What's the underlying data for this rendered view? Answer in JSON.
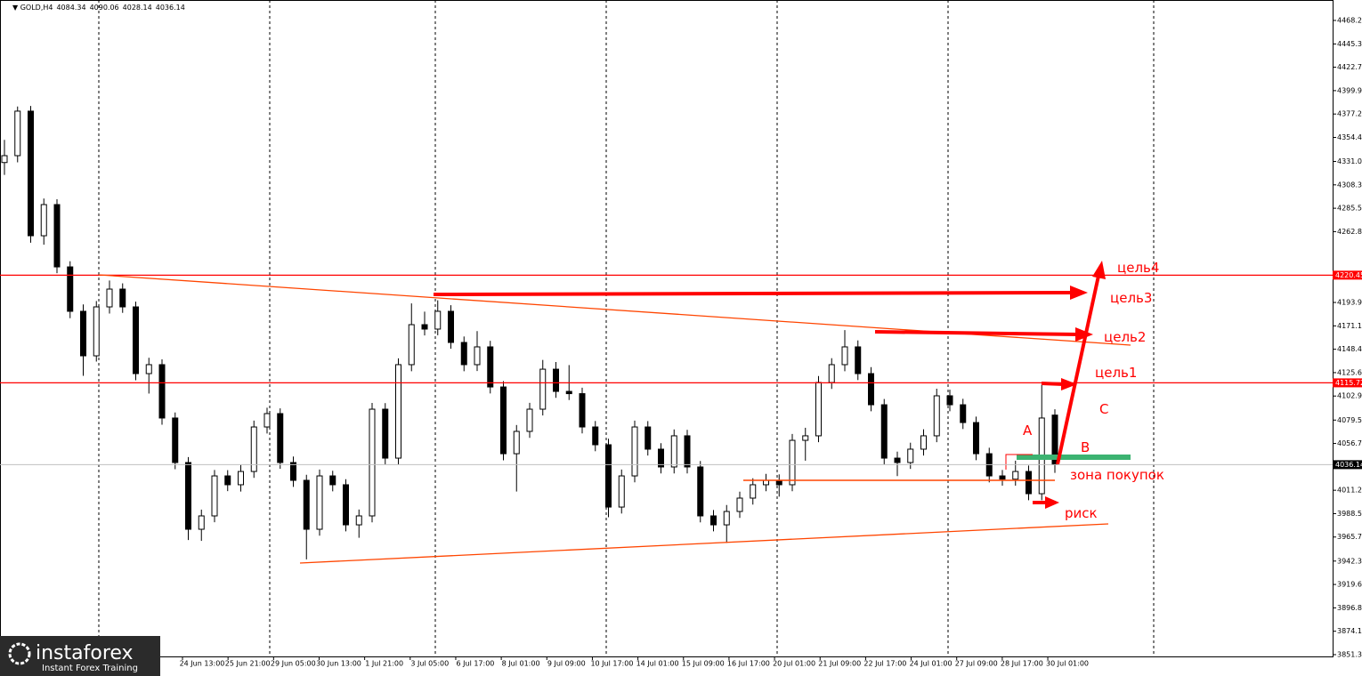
{
  "chart_data": {
    "type": "candlestick",
    "symbol": "GOLD,H4",
    "ylim": [
      3849.6,
      4488.1
    ],
    "yticks": [
      4468.22,
      4445.35,
      4422.75,
      4399.95,
      4377.2,
      4354.45,
      4331.05,
      4308.3,
      4285.55,
      4262.8,
      4193.9,
      4171.15,
      4148.4,
      4125.65,
      4102.9,
      4079.5,
      4056.75,
      4011.25,
      3988.5,
      3965.75,
      3942.35,
      3919.6,
      3896.85,
      3874.1,
      3851.35
    ],
    "x_labels": [
      "24 Jun 13:00",
      "25 Jun 21:00",
      "29 Jun 05:00",
      "30 Jun 13:00",
      "1 Jul 21:00",
      "3 Jul 05:00",
      "6 Jul 17:00",
      "8 Jul 01:00",
      "9 Jul 09:00",
      "10 Jul 17:00",
      "14 Jul 01:00",
      "15 Jul 09:00",
      "16 Jul 17:00",
      "20 Jul 01:00",
      "21 Jul 09:00",
      "22 Jul 17:00",
      "24 Jul 01:00",
      "27 Jul 09:00",
      "28 Jul 17:00",
      "30 Jul 01:00"
    ],
    "levels": [
      {
        "value": 4220.45,
        "color": "#ff0000"
      },
      {
        "value": 4115.72,
        "color": "#ff0000"
      }
    ],
    "ohlc": [
      [
        4330.0,
        4352.0,
        4318.0,
        4336.7
      ],
      [
        4336.7,
        4384.5,
        4330.2,
        4380.0
      ],
      [
        4380.0,
        4385.0,
        4252.0,
        4258.8
      ],
      [
        4258.8,
        4295.0,
        4250.1,
        4289.1
      ],
      [
        4289.1,
        4294.3,
        4222.4,
        4228.5
      ],
      [
        4228.5,
        4234.0,
        4178.6,
        4185.3
      ],
      [
        4185.3,
        4192.0,
        4122.6,
        4142.0
      ],
      [
        4142.0,
        4195.3,
        4136.4,
        4189.6
      ],
      [
        4189.6,
        4215.2,
        4183.1,
        4206.9
      ],
      [
        4206.9,
        4212.5,
        4183.8,
        4189.6
      ],
      [
        4189.6,
        4194.7,
        4118.2,
        4124.7
      ],
      [
        4124.7,
        4140.1,
        4105.3,
        4133.4
      ],
      [
        4133.4,
        4138.6,
        4075.0,
        4081.5
      ],
      [
        4081.5,
        4086.9,
        4031.7,
        4038.2
      ],
      [
        4038.2,
        4043.5,
        3962.8,
        3973.3
      ],
      [
        3973.3,
        3992.4,
        3962.0,
        3986.3
      ],
      [
        3986.3,
        4031.0,
        3980.1,
        4025.2
      ],
      [
        4025.2,
        4030.8,
        4010.4,
        4016.6
      ],
      [
        4016.6,
        4035.7,
        4010.0,
        4029.5
      ],
      [
        4029.5,
        4079.0,
        4023.3,
        4072.8
      ],
      [
        4072.8,
        4091.5,
        4066.4,
        4085.8
      ],
      [
        4085.8,
        4090.9,
        4032.1,
        4038.2
      ],
      [
        4038.2,
        4044.0,
        4014.5,
        4020.9
      ],
      [
        4020.9,
        4026.3,
        3944.0,
        3973.3
      ],
      [
        3973.3,
        4031.4,
        3967.0,
        4025.2
      ],
      [
        4025.2,
        4030.2,
        4010.2,
        4016.6
      ],
      [
        4016.6,
        4022.0,
        3971.3,
        3977.6
      ],
      [
        3977.6,
        3992.5,
        3965.0,
        3986.3
      ],
      [
        3986.3,
        4096.2,
        3980.0,
        4090.1
      ],
      [
        4090.1,
        4096.0,
        4036.2,
        4042.5
      ],
      [
        4042.5,
        4139.5,
        4036.4,
        4133.4
      ],
      [
        4133.4,
        4193.0,
        4127.0,
        4172.3
      ],
      [
        4172.3,
        4185.0,
        4161.8,
        4168.0
      ],
      [
        4168.0,
        4196.0,
        4162.0,
        4185.3
      ],
      [
        4185.3,
        4191.2,
        4149.0,
        4155.0
      ],
      [
        4155.0,
        4160.8,
        4127.0,
        4133.4
      ],
      [
        4133.4,
        4166.0,
        4127.2,
        4150.7
      ],
      [
        4150.7,
        4156.6,
        4105.4,
        4111.7
      ],
      [
        4111.7,
        4117.4,
        4040.4,
        4046.8
      ],
      [
        4046.8,
        4074.7,
        4010.0,
        4068.5
      ],
      [
        4068.5,
        4096.3,
        4062.2,
        4090.1
      ],
      [
        4090.1,
        4138.0,
        4084.0,
        4129.0
      ],
      [
        4129.0,
        4136.0,
        4101.1,
        4107.4
      ],
      [
        4107.4,
        4133.0,
        4099.0,
        4105.2
      ],
      [
        4105.2,
        4111.0,
        4066.5,
        4072.8
      ],
      [
        4072.8,
        4078.6,
        4049.2,
        4055.5
      ],
      [
        4055.5,
        4061.3,
        3985.0,
        3994.9
      ],
      [
        3994.9,
        4031.4,
        3988.6,
        4025.2
      ],
      [
        4025.2,
        4079.0,
        4019.0,
        4072.8
      ],
      [
        4072.8,
        4078.5,
        4045.0,
        4051.2
      ],
      [
        4051.2,
        4057.0,
        4027.6,
        4033.9
      ],
      [
        4033.9,
        4070.4,
        4027.6,
        4064.2
      ],
      [
        4064.2,
        4070.0,
        4027.6,
        4033.9
      ],
      [
        4033.9,
        4039.7,
        3980.0,
        3986.3
      ],
      [
        3986.3,
        3992.0,
        3971.3,
        3977.6
      ],
      [
        3977.6,
        3996.9,
        3960.0,
        3990.6
      ],
      [
        3990.6,
        4009.9,
        3984.3,
        4003.6
      ],
      [
        4003.6,
        4022.9,
        3997.3,
        4016.6
      ],
      [
        4016.6,
        4027.2,
        4010.3,
        4020.9
      ],
      [
        4020.9,
        4026.7,
        4005.0,
        4016.6
      ],
      [
        4016.6,
        4066.0,
        4010.3,
        4059.8
      ],
      [
        4059.8,
        4072.0,
        4040.0,
        4064.2
      ],
      [
        4064.2,
        4122.4,
        4058.0,
        4116.1
      ],
      [
        4116.1,
        4139.7,
        4109.8,
        4133.4
      ],
      [
        4133.4,
        4167.0,
        4127.0,
        4150.7
      ],
      [
        4150.7,
        4157.0,
        4118.4,
        4124.7
      ],
      [
        4124.7,
        4131.0,
        4088.1,
        4094.4
      ],
      [
        4094.4,
        4100.0,
        4036.2,
        4042.5
      ],
      [
        4042.5,
        4048.8,
        4025.0,
        4038.2
      ],
      [
        4038.2,
        4057.5,
        4032.0,
        4051.2
      ],
      [
        4051.2,
        4070.5,
        4045.0,
        4064.2
      ],
      [
        4064.2,
        4110.0,
        4058.0,
        4103.1
      ],
      [
        4103.1,
        4109.0,
        4088.1,
        4094.4
      ],
      [
        4094.4,
        4100.2,
        4070.8,
        4077.1
      ],
      [
        4077.1,
        4082.9,
        4040.5,
        4046.8
      ],
      [
        4046.8,
        4052.6,
        4018.9,
        4025.2
      ],
      [
        4025.2,
        4031.0,
        4015.7,
        4022.0
      ],
      [
        4022.0,
        4040.0,
        4015.7,
        4029.5
      ],
      [
        4029.5,
        4035.3,
        4001.6,
        4007.9
      ],
      [
        4007.9,
        4114.0,
        4001.6,
        4081.5
      ],
      [
        4084.34,
        4090.06,
        4028.14,
        4036.14
      ]
    ],
    "annotations": {
      "target4": "цель4",
      "target3": "цель3",
      "target2": "цель2",
      "target1": "цель1",
      "c": "C",
      "a": "A",
      "b": "B",
      "buy_zone": "зона покупок",
      "risk": "риск"
    }
  },
  "logo": {
    "name": "instaforex",
    "tagline": "Instant Forex Training"
  }
}
